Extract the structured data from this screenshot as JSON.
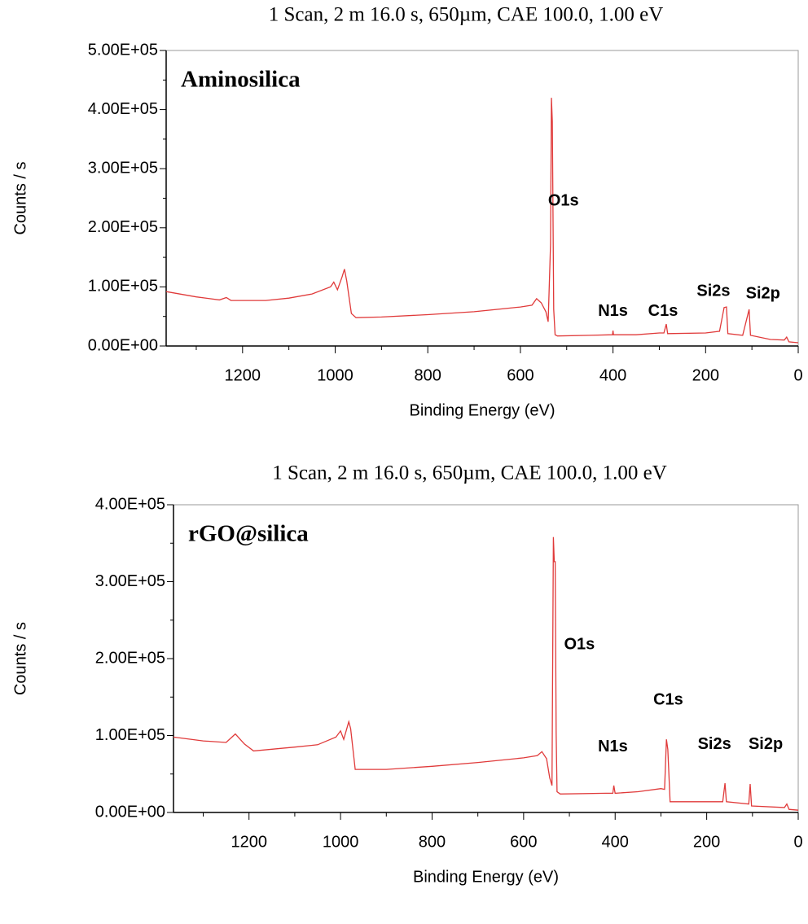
{
  "chart_data": [
    {
      "type": "line",
      "title": "1 Scan,  2 m 16.0 s,  650µm,  CAE 100.0,  1.00 eV",
      "label": "Aminosilica",
      "x_label": "Binding Energy (eV)",
      "y_label": "Counts / s",
      "color": "#e03a3a",
      "xlim": [
        1365,
        0
      ],
      "xticks": [
        1200,
        1000,
        800,
        600,
        400,
        200,
        0
      ],
      "xminorticks": [
        1300,
        1100,
        900,
        700,
        500,
        300,
        100
      ],
      "ylim": [
        0,
        500000
      ],
      "yticks": [
        {
          "value": 0,
          "label": "0.00E+00"
        },
        {
          "value": 100000,
          "label": "1.00E+05"
        },
        {
          "value": 200000,
          "label": "2.00E+05"
        },
        {
          "value": 300000,
          "label": "3.00E+05"
        },
        {
          "value": 400000,
          "label": "4.00E+05"
        },
        {
          "value": 500000,
          "label": "5.00E+05"
        }
      ],
      "yminorticks": [
        50000,
        150000,
        250000,
        350000,
        450000
      ],
      "x": [
        1365,
        1300,
        1250,
        1235,
        1225,
        1150,
        1100,
        1050,
        1010,
        1003,
        995,
        985,
        980,
        975,
        965,
        955,
        900,
        800,
        700,
        600,
        575,
        565,
        555,
        545,
        540,
        535,
        533,
        531,
        528,
        525,
        520,
        450,
        401,
        400,
        399,
        350,
        300,
        290,
        285,
        282,
        200,
        170,
        160,
        155,
        152,
        120,
        106,
        103,
        60,
        30,
        25,
        20,
        0
      ],
      "values": [
        92000,
        83000,
        78000,
        82000,
        77000,
        77000,
        81000,
        88000,
        100000,
        108000,
        95000,
        117000,
        130000,
        110000,
        55000,
        48000,
        49000,
        53000,
        58000,
        66000,
        69000,
        80000,
        73000,
        58000,
        41000,
        172000,
        420000,
        380000,
        62000,
        19000,
        17000,
        18000,
        19000,
        26000,
        19000,
        19000,
        22000,
        22000,
        37000,
        21000,
        22000,
        25000,
        65000,
        66000,
        21000,
        18000,
        62000,
        18000,
        11000,
        10000,
        15000,
        7000,
        5500
      ],
      "annotations": [
        {
          "text": "O1s",
          "x": 507,
          "y": 245000
        },
        {
          "text": "N1s",
          "x": 400,
          "y": 58000
        },
        {
          "text": "C1s",
          "x": 292,
          "y": 58000
        },
        {
          "text": "Si2s",
          "x": 183,
          "y": 92000
        },
        {
          "text": "Si2p",
          "x": 76,
          "y": 88000
        }
      ]
    },
    {
      "type": "line",
      "title": "1 Scan,  2 m 16.0 s,  650µm,  CAE 100.0,  1.00 eV",
      "label": "rGO@silica",
      "x_label": "Binding Energy (eV)",
      "y_label": "Counts / s",
      "color": "#e03a3a",
      "xlim": [
        1365,
        0
      ],
      "xticks": [
        1200,
        1000,
        800,
        600,
        400,
        200,
        0
      ],
      "xminorticks": [
        1300,
        1100,
        900,
        700,
        500,
        300,
        100
      ],
      "ylim": [
        0,
        400000
      ],
      "yticks": [
        {
          "value": 0,
          "label": "0.00E+00"
        },
        {
          "value": 100000,
          "label": "1.00E+05"
        },
        {
          "value": 200000,
          "label": "2.00E+05"
        },
        {
          "value": 300000,
          "label": "3.00E+05"
        },
        {
          "value": 400000,
          "label": "4.00E+05"
        }
      ],
      "yminorticks": [
        50000,
        150000,
        250000,
        350000
      ],
      "x": [
        1365,
        1300,
        1250,
        1230,
        1210,
        1190,
        1100,
        1050,
        1010,
        1000,
        993,
        982,
        978,
        968,
        900,
        800,
        700,
        600,
        570,
        560,
        550,
        543,
        538,
        535,
        533,
        531,
        529,
        527,
        520,
        420,
        405,
        403,
        400,
        350,
        300,
        292,
        288,
        285,
        280,
        200,
        165,
        160,
        157,
        108,
        105,
        102,
        30,
        25,
        20,
        0
      ],
      "values": [
        98000,
        93000,
        91000,
        102000,
        89000,
        80000,
        85000,
        88000,
        98000,
        106000,
        95000,
        118000,
        109000,
        56000,
        56000,
        60000,
        65000,
        71000,
        74000,
        79000,
        70000,
        45000,
        35000,
        358000,
        326000,
        326000,
        104000,
        27000,
        24000,
        25000,
        25000,
        35000,
        25000,
        27000,
        31000,
        30000,
        95000,
        82000,
        14000,
        14000,
        14000,
        38000,
        14000,
        11000,
        37000,
        8500,
        6500,
        11000,
        4000,
        3000
      ],
      "annotations": [
        {
          "text": "O1s",
          "x": 478,
          "y": 218000
        },
        {
          "text": "C1s",
          "x": 284,
          "y": 146000
        },
        {
          "text": "N1s",
          "x": 405,
          "y": 85000
        },
        {
          "text": "Si2s",
          "x": 183,
          "y": 88000
        },
        {
          "text": "Si2p",
          "x": 71,
          "y": 88000
        }
      ]
    }
  ]
}
